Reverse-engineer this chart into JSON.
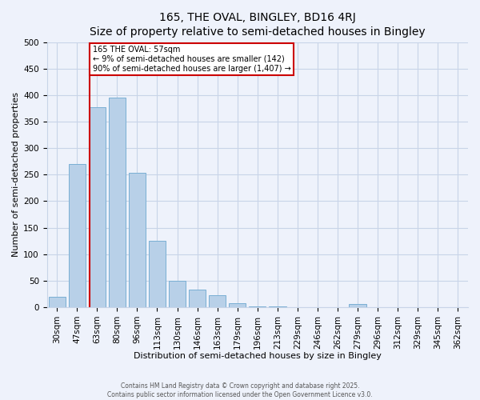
{
  "title": "165, THE OVAL, BINGLEY, BD16 4RJ",
  "subtitle": "Size of property relative to semi-detached houses in Bingley",
  "xlabel": "Distribution of semi-detached houses by size in Bingley",
  "ylabel": "Number of semi-detached properties",
  "bar_labels": [
    "30sqm",
    "47sqm",
    "63sqm",
    "80sqm",
    "96sqm",
    "113sqm",
    "130sqm",
    "146sqm",
    "163sqm",
    "179sqm",
    "196sqm",
    "213sqm",
    "229sqm",
    "246sqm",
    "262sqm",
    "279sqm",
    "296sqm",
    "312sqm",
    "329sqm",
    "345sqm",
    "362sqm"
  ],
  "bar_values": [
    20,
    270,
    378,
    395,
    253,
    125,
    50,
    33,
    22,
    8,
    2,
    1,
    0,
    0,
    0,
    6,
    0,
    0,
    0,
    0,
    0
  ],
  "bar_color": "#b8d0e8",
  "bar_edge_color": "#7aafd4",
  "property_line_label": "165 THE OVAL: 57sqm",
  "annotation_line1": "← 9% of semi-detached houses are smaller (142)",
  "annotation_line2": "90% of semi-detached houses are larger (1,407) →",
  "annotation_box_color": "#ffffff",
  "annotation_box_edge": "#cc0000",
  "ylim": [
    0,
    500
  ],
  "yticks": [
    0,
    50,
    100,
    150,
    200,
    250,
    300,
    350,
    400,
    450,
    500
  ],
  "vline_color": "#cc0000",
  "footer1": "Contains HM Land Registry data © Crown copyright and database right 2025.",
  "footer2": "Contains public sector information licensed under the Open Government Licence v3.0.",
  "bg_color": "#eef2fb",
  "grid_color": "#c8d4e8",
  "title_fontsize": 10,
  "subtitle_fontsize": 9,
  "xlabel_fontsize": 8,
  "ylabel_fontsize": 8,
  "tick_fontsize": 7.5,
  "footer_fontsize": 5.5
}
